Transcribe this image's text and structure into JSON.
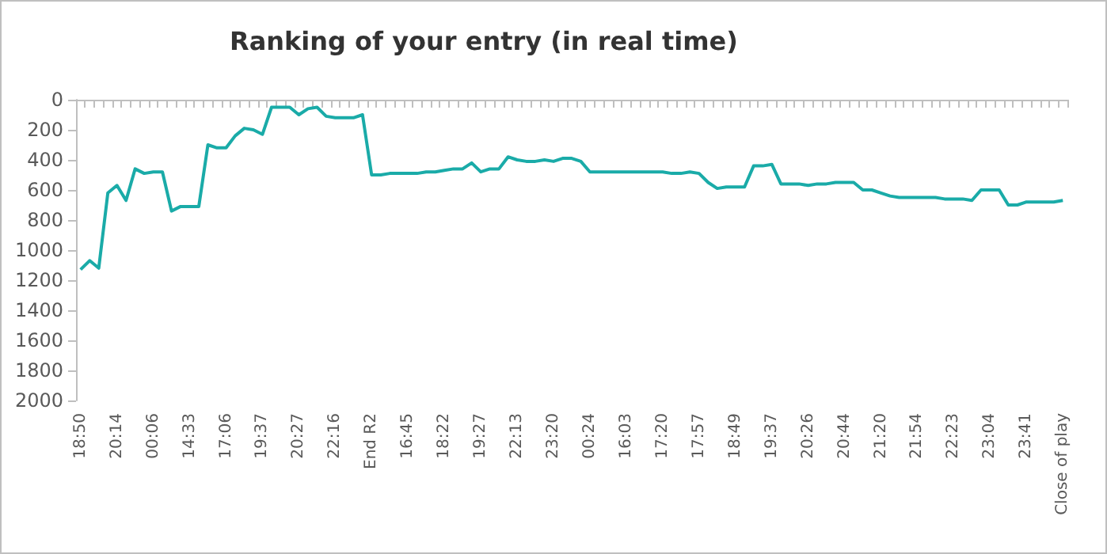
{
  "chart_data": {
    "type": "line",
    "title": "Ranking of your entry (in real time)",
    "categories": [
      "18:50",
      null,
      null,
      null,
      "20:14",
      null,
      null,
      null,
      "00:06",
      null,
      null,
      null,
      "14:33",
      null,
      null,
      null,
      "17:06",
      null,
      null,
      null,
      "19:37",
      null,
      null,
      null,
      "20:27",
      null,
      null,
      null,
      "22:16",
      null,
      null,
      null,
      "End R2",
      null,
      null,
      null,
      "16:45",
      null,
      null,
      null,
      "18:22",
      null,
      null,
      null,
      "19:27",
      null,
      null,
      null,
      "22:13",
      null,
      null,
      null,
      "23:20",
      null,
      null,
      null,
      "00:24",
      null,
      null,
      null,
      "16:03",
      null,
      null,
      null,
      "17:20",
      null,
      null,
      null,
      "17:57",
      null,
      null,
      null,
      "18:49",
      null,
      null,
      null,
      "19:37",
      null,
      null,
      null,
      "20:26",
      null,
      null,
      null,
      "20:44",
      null,
      null,
      null,
      "21:20",
      null,
      null,
      null,
      "21:54",
      null,
      null,
      null,
      "22:23",
      null,
      null,
      null,
      "23:04",
      null,
      null,
      null,
      "23:41",
      null,
      null,
      null,
      "Close of play"
    ],
    "series": [
      {
        "color": "#1aaba8",
        "values": [
          1130,
          1070,
          1120,
          620,
          570,
          670,
          460,
          490,
          480,
          480,
          740,
          710,
          710,
          710,
          300,
          320,
          320,
          240,
          190,
          200,
          230,
          50,
          50,
          50,
          100,
          60,
          50,
          110,
          120,
          120,
          120,
          100,
          500,
          500,
          490,
          490,
          490,
          490,
          480,
          480,
          470,
          460,
          460,
          420,
          480,
          460,
          460,
          380,
          400,
          410,
          410,
          400,
          410,
          390,
          390,
          410,
          480,
          480,
          480,
          480,
          480,
          480,
          480,
          480,
          480,
          490,
          490,
          480,
          490,
          550,
          590,
          580,
          580,
          580,
          440,
          440,
          430,
          560,
          560,
          560,
          570,
          560,
          560,
          550,
          550,
          550,
          600,
          600,
          620,
          640,
          650,
          650,
          650,
          650,
          650,
          660,
          660,
          660,
          670,
          600,
          600,
          600,
          700,
          700,
          680,
          680,
          680,
          680,
          670
        ]
      }
    ],
    "ylim": [
      2000,
      0
    ],
    "yticks": [
      0,
      200,
      400,
      600,
      800,
      1000,
      1200,
      1400,
      1600,
      1800,
      2000
    ],
    "grid": false,
    "marker": "none",
    "line_style": "solid"
  }
}
